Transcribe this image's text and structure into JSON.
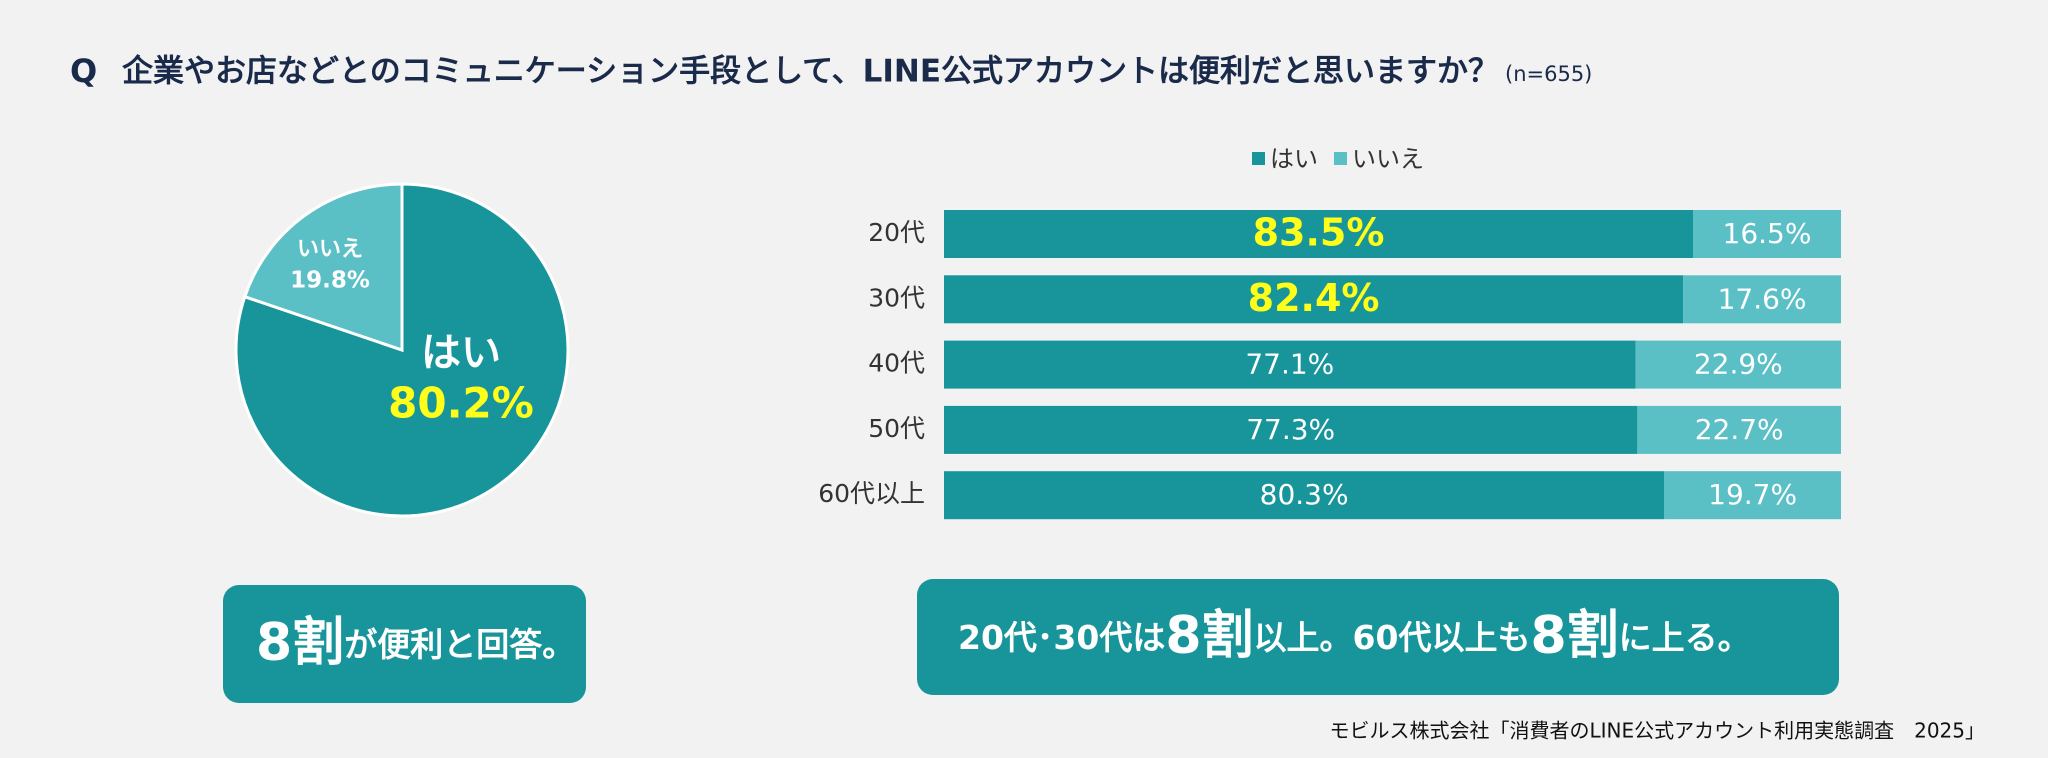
{
  "title": {
    "prefix": "Q",
    "text": "企業やお店などとのコミュニケーション手段として、LINE公式アカウントは便利だと思いますか？",
    "note": "(n=655)"
  },
  "chart_data": [
    {
      "type": "pie",
      "categories": [
        "はい",
        "いいえ"
      ],
      "values": [
        80.2,
        19.8
      ],
      "value_labels": [
        "80.2%",
        "19.8%"
      ],
      "colors": [
        "#17959a",
        "#5bbfc6"
      ],
      "value_label_colors": [
        "#ffff1a",
        "#ffffff"
      ]
    },
    {
      "type": "bar",
      "orientation": "horizontal",
      "stacked": true,
      "legend": "top",
      "categories": [
        "20代",
        "30代",
        "40代",
        "50代",
        "60代以上"
      ],
      "xlim": [
        0,
        100
      ],
      "series": [
        {
          "name": "はい",
          "color": "#17959a",
          "values": [
            83.5,
            82.4,
            77.1,
            77.3,
            80.3
          ],
          "value_labels": [
            "83.5%",
            "82.4%",
            "77.1%",
            "77.3%",
            "80.3%"
          ],
          "value_label_emphasis": [
            true,
            true,
            false,
            false,
            false
          ]
        },
        {
          "name": "いいえ",
          "color": "#5bbfc6",
          "values": [
            16.5,
            17.6,
            22.9,
            22.7,
            19.7
          ],
          "value_labels": [
            "16.5%",
            "17.6%",
            "22.9%",
            "22.7%",
            "19.7%"
          ],
          "value_label_emphasis": [
            false,
            false,
            false,
            false,
            false
          ]
        }
      ],
      "emphasis_color": "#ffff1a"
    }
  ],
  "callouts": [
    {
      "parts": [
        "8割",
        "が便利と回答。"
      ],
      "emphasis": [
        true,
        false
      ]
    },
    {
      "parts": [
        "20代･30代は",
        "8割",
        "以上。60代以上も",
        "8割",
        "に上る。"
      ],
      "emphasis": [
        false,
        true,
        false,
        true,
        false
      ]
    }
  ],
  "source": "モビルス株式会社「消費者のLINE公式アカウント利用実態調査　2025」"
}
